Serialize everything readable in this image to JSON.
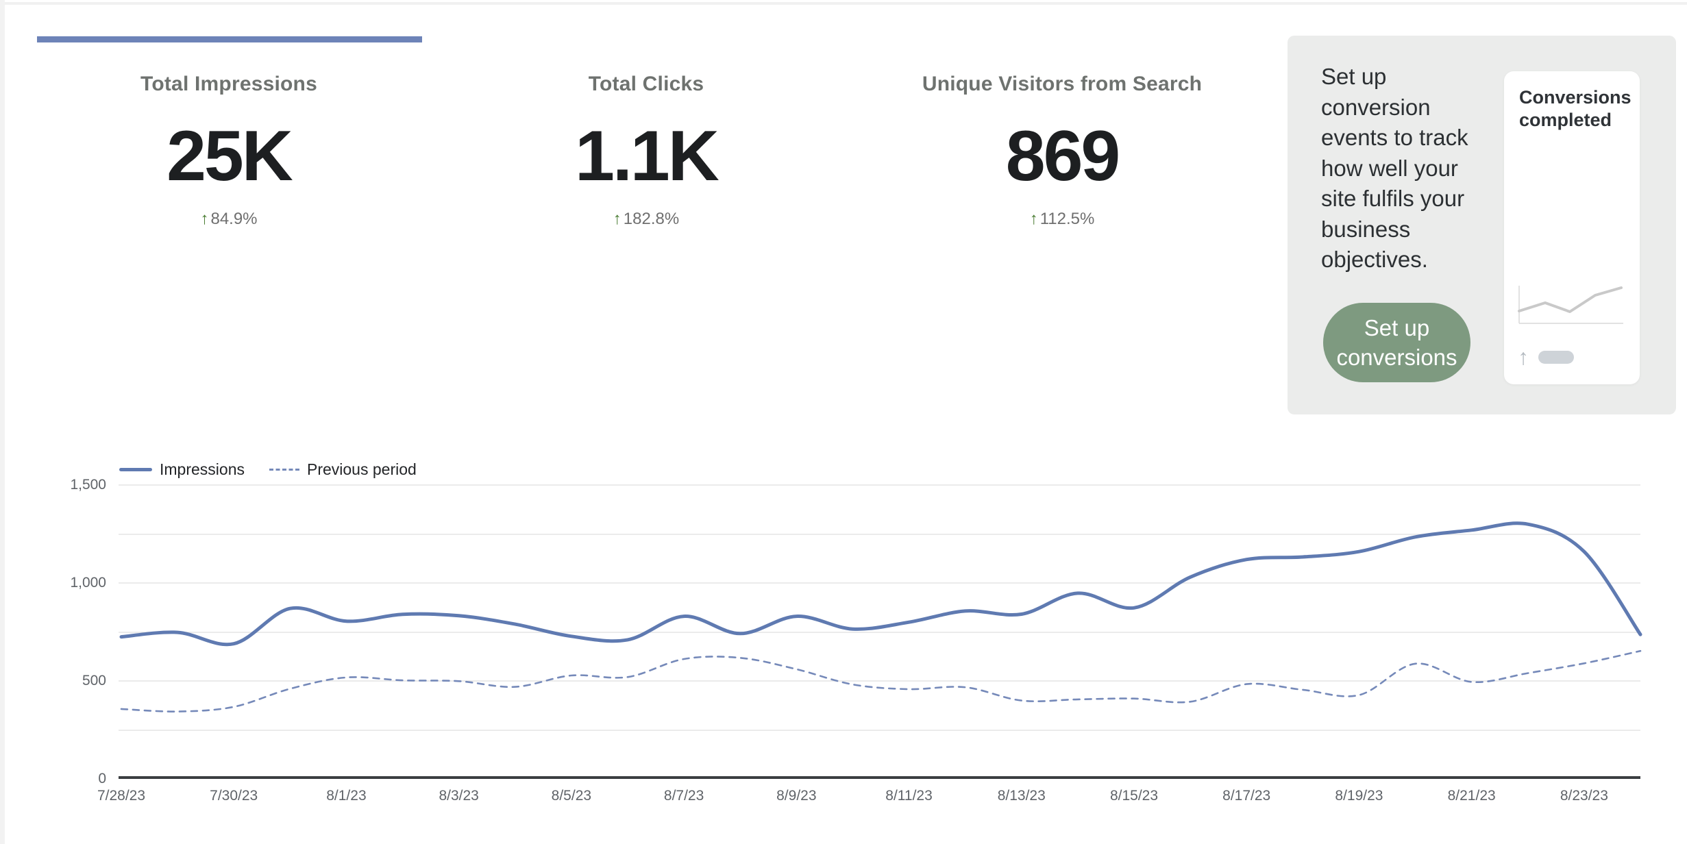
{
  "accent": {
    "tab_bar_color": "#6d83b8"
  },
  "icons": {
    "up_arrow": "↑"
  },
  "metric_tabs": [
    {
      "title": "Total Impressions",
      "value": "25K",
      "delta": "84.9%",
      "active": true
    },
    {
      "title": "Total Clicks",
      "value": "1.1K",
      "delta": "182.8%",
      "active": false
    },
    {
      "title": "Unique Visitors from Search",
      "value": "869",
      "delta": "112.5%",
      "active": false
    }
  ],
  "setup_card": {
    "message": "Set up\nconversion\nevents to track\nhow well your\nsite fulfils your\nbusiness\nobjectives.",
    "button_label": "Set up\nconversions",
    "button_color": "#7e9a80",
    "background_color": "#ebeceb",
    "preview": {
      "title": "Conversions completed",
      "spark_points": [
        [
          2,
          40
        ],
        [
          40,
          28
        ],
        [
          76,
          41
        ],
        [
          113,
          17
        ],
        [
          151,
          6
        ]
      ],
      "spark_color": "#c9c9c9",
      "spark_axis_color": "#d9d9d9"
    }
  },
  "chart_data": {
    "type": "line",
    "title": "",
    "xlabel": "",
    "ylabel": "",
    "x": [
      "7/28/23",
      "7/29/23",
      "7/30/23",
      "7/31/23",
      "8/1/23",
      "8/2/23",
      "8/3/23",
      "8/4/23",
      "8/5/23",
      "8/6/23",
      "8/7/23",
      "8/8/23",
      "8/9/23",
      "8/10/23",
      "8/11/23",
      "8/12/23",
      "8/13/23",
      "8/14/23",
      "8/15/23",
      "8/16/23",
      "8/17/23",
      "8/18/23",
      "8/19/23",
      "8/20/23",
      "8/21/23",
      "8/22/23",
      "8/23/23",
      "8/24/23"
    ],
    "x_tick_step": 2,
    "series": [
      {
        "name": "Impressions",
        "style": "solid",
        "color": "#5f7ab1",
        "values": [
          725,
          748,
          690,
          870,
          805,
          840,
          833,
          790,
          728,
          710,
          830,
          742,
          830,
          765,
          800,
          857,
          841,
          948,
          873,
          1030,
          1120,
          1133,
          1160,
          1235,
          1270,
          1300,
          1160,
          737
        ]
      },
      {
        "name": "Previous period",
        "style": "dashed",
        "color": "#7589b9",
        "values": [
          357,
          344,
          368,
          460,
          518,
          503,
          499,
          470,
          528,
          520,
          612,
          618,
          560,
          482,
          458,
          468,
          400,
          406,
          410,
          394,
          484,
          455,
          428,
          588,
          495,
          540,
          590,
          653
        ]
      }
    ],
    "ylim": [
      0,
      1500
    ],
    "yticks": [
      {
        "value": 0,
        "label": "0"
      },
      {
        "value": 500,
        "label": "500"
      },
      {
        "value": 1000,
        "label": "1,000"
      },
      {
        "value": 1500,
        "label": "1,500"
      }
    ],
    "grid_values": [
      250,
      500,
      750,
      1000,
      1250,
      1500
    ],
    "grid": true,
    "legend_position": "top-left"
  }
}
